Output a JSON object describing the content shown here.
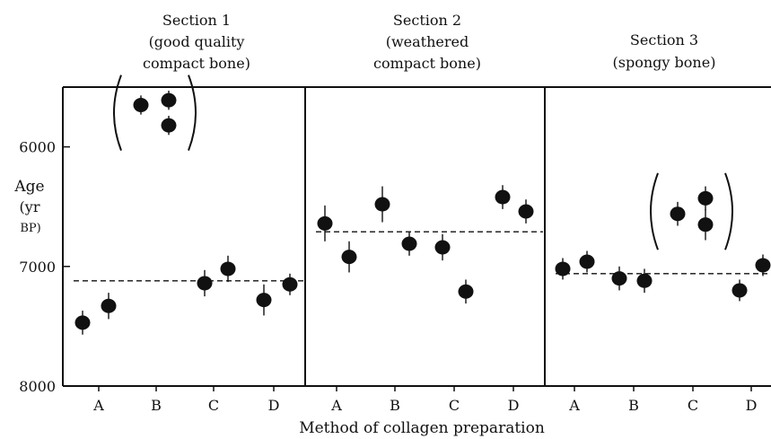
{
  "chart_data": {
    "type": "scatter",
    "xlabel": "Method of collagen preparation",
    "ylabel": "Age",
    "ylabel_lines": [
      "(yr",
      "BP)"
    ],
    "yticks": [
      6000,
      7000,
      8000
    ],
    "ylim": [
      5500,
      8000
    ],
    "y_inverted": true,
    "categories": [
      "A",
      "B",
      "C",
      "D"
    ],
    "grid": false,
    "panels": [
      {
        "title_lines": [
          "Section 1",
          "(good quality",
          "compact bone)"
        ],
        "mean_line": 7120,
        "points": [
          {
            "category": "A",
            "y": 7470,
            "err": 100
          },
          {
            "category": "A",
            "y": 7330,
            "err": 110
          },
          {
            "category": "B",
            "y": 5650,
            "err": 80,
            "excluded": true
          },
          {
            "category": "B",
            "y": 5820,
            "err": 80,
            "excluded": true
          },
          {
            "category": "B",
            "y": 5610,
            "err": 80,
            "excluded": true
          },
          {
            "category": "C",
            "y": 7140,
            "err": 110
          },
          {
            "category": "C",
            "y": 7020,
            "err": 110
          },
          {
            "category": "D",
            "y": 7280,
            "err": 130
          },
          {
            "category": "D",
            "y": 7150,
            "err": 90
          }
        ]
      },
      {
        "title_lines": [
          "Section 2",
          "(weathered",
          "compact bone)"
        ],
        "mean_line": 6710,
        "points": [
          {
            "category": "A",
            "y": 6640,
            "err": 150
          },
          {
            "category": "A",
            "y": 6920,
            "err": 130
          },
          {
            "category": "B",
            "y": 6480,
            "err": 150
          },
          {
            "category": "B",
            "y": 6810,
            "err": 100
          },
          {
            "category": "C",
            "y": 6840,
            "err": 110
          },
          {
            "category": "C",
            "y": 7210,
            "err": 100
          },
          {
            "category": "D",
            "y": 6420,
            "err": 100
          },
          {
            "category": "D",
            "y": 6540,
            "err": 100
          }
        ]
      },
      {
        "title_lines": [
          "Section 3",
          "(spongy bone)"
        ],
        "mean_line": 7060,
        "points": [
          {
            "category": "A",
            "y": 7020,
            "err": 90
          },
          {
            "category": "A",
            "y": 6960,
            "err": 90
          },
          {
            "category": "B",
            "y": 7100,
            "err": 100
          },
          {
            "category": "B",
            "y": 7120,
            "err": 100
          },
          {
            "category": "C",
            "y": 6560,
            "err": 100,
            "excluded": true
          },
          {
            "category": "C",
            "y": 6430,
            "err": 100,
            "excluded": true
          },
          {
            "category": "C",
            "y": 6650,
            "err": 130,
            "excluded": true
          },
          {
            "category": "D",
            "y": 7200,
            "err": 90
          },
          {
            "category": "D",
            "y": 6990,
            "err": 90
          }
        ]
      }
    ]
  }
}
